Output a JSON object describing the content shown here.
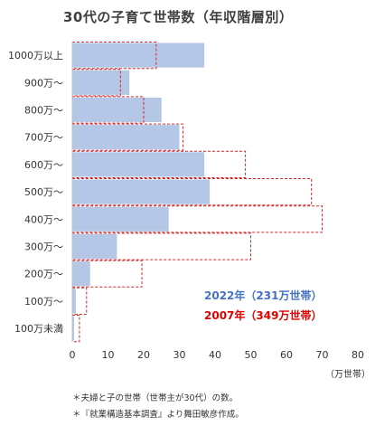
{
  "chart_data": {
    "type": "bar",
    "orientation": "horizontal",
    "title": "30代の子育て世帯数（年収階層別）",
    "categories": [
      "1000万以上",
      "900万〜",
      "800万〜",
      "700万〜",
      "600万〜",
      "500万〜",
      "400万〜",
      "300万〜",
      "200万〜",
      "100万〜",
      "100万未満"
    ],
    "series": [
      {
        "name": "2022年（231万世帯）",
        "values": [
          37,
          16,
          25,
          30,
          37,
          38.5,
          27,
          12.5,
          5,
          1,
          0.5
        ],
        "style": "filled",
        "color": "#b4c7e7"
      },
      {
        "name": "2007年（349万世帯）",
        "values": [
          23.5,
          13.5,
          20,
          31,
          48.5,
          67,
          70,
          50,
          19.5,
          4,
          2
        ],
        "style": "dashed-outline",
        "color": "#d9262c"
      }
    ],
    "xlim": [
      0,
      80
    ],
    "xticks": [
      "0",
      "10",
      "20",
      "30",
      "40",
      "50",
      "60",
      "70",
      "80"
    ],
    "xlabel": "（万世帯）",
    "ylabel": "",
    "grid": false,
    "legend_placement": "inside-lower-right"
  },
  "legend_colors": {
    "2022": "#4472c4",
    "2007": "#e00000"
  },
  "notes": [
    "＊夫婦と子の世帯（世帯主が30代）の数。",
    "＊『就業構造基本調査』より舞田敏彦作成。"
  ]
}
